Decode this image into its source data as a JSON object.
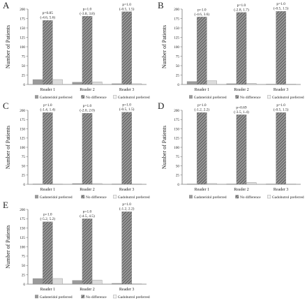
{
  "figure": {
    "colors": {
      "axis": "#777777",
      "gadoteridol_bar": "#9a9a9a",
      "no_difference_bar": "#6f6f6f",
      "gadobutrol_bar": "#dcdcdc",
      "text": "#222222"
    }
  },
  "chart_data": [
    {
      "panel": "A",
      "type": "bar",
      "ylabel": "Number of Patients",
      "ylim": [
        0,
        200
      ],
      "yticks": [
        "0",
        "25",
        "50",
        "75",
        "100",
        "125",
        "150",
        "175",
        "200"
      ],
      "categories": [
        "Reader 1",
        "Reader 2",
        "Reader 3"
      ],
      "series": [
        {
          "name": "Gadoteridol preferred",
          "values": [
            13,
            6,
            2
          ]
        },
        {
          "name": "No difference",
          "values": [
            170,
            181,
            193
          ]
        },
        {
          "name": "Gadobutrol preferred",
          "values": [
            13,
            7,
            2
          ]
        }
      ],
      "annotations": [
        [
          "p=0.85",
          "(-4.6, 5.6)"
        ],
        [
          "p=1.0",
          "(-3.8, 3.8)"
        ],
        [
          "p=1.0",
          "(-0.5, 1.5)"
        ]
      ],
      "legend": "bottom"
    },
    {
      "panel": "B",
      "type": "bar",
      "ylabel": "Number of Patients",
      "ylim": [
        0,
        200
      ],
      "yticks": [
        "0",
        "25",
        "50",
        "75",
        "100",
        "125",
        "150",
        "175",
        "200"
      ],
      "categories": [
        "Reader 1",
        "Reader 2",
        "Reader 3"
      ],
      "series": [
        {
          "name": "Gadoteridol preferred",
          "values": [
            8,
            2,
            1
          ]
        },
        {
          "name": "No difference",
          "values": [
            179,
            191,
            194
          ]
        },
        {
          "name": "Gadobutrol preferred",
          "values": [
            10,
            3,
            1
          ]
        }
      ],
      "annotations": [
        [
          "p=1.0",
          "(-4.6, 3.6)"
        ],
        [
          "p=1.0",
          "(-2.8, 1.7)"
        ],
        [
          "p=1.0",
          "(-0.5, 1.5)"
        ]
      ],
      "legend": "bottom"
    },
    {
      "panel": "C",
      "type": "bar",
      "ylabel": "Number of Patients",
      "ylim": [
        0,
        200
      ],
      "yticks": [
        "0",
        "25",
        "50",
        "75",
        "100",
        "125",
        "150",
        "175",
        "200"
      ],
      "categories": [
        "Reader 1",
        "Reader 2",
        "Reader 3"
      ],
      "series": [
        {
          "name": "Gadoteridol preferred",
          "values": [
            1,
            2,
            1
          ]
        },
        {
          "name": "No difference",
          "values": [
            194,
            192,
            195
          ]
        },
        {
          "name": "Gadobutrol preferred",
          "values": [
            1,
            2,
            1
          ]
        }
      ],
      "annotations": [
        [
          "p=1.0",
          "(-1.4, 1.4)"
        ],
        [
          "p=1.0",
          "(-2.0, 2.0)"
        ],
        [
          "p=1.0",
          "(-0.5, 1.5)"
        ]
      ],
      "legend": "bottom"
    },
    {
      "panel": "D",
      "type": "bar",
      "ylabel": "Number of Patients",
      "ylim": [
        0,
        200
      ],
      "yticks": [
        "0",
        "25",
        "50",
        "75",
        "100",
        "125",
        "150",
        "175",
        "200"
      ],
      "categories": [
        "Reader 1",
        "Reader 2",
        "Reader 3"
      ],
      "series": [
        {
          "name": "Gadoteridol preferred",
          "values": [
            1,
            1,
            1
          ]
        },
        {
          "name": "No difference",
          "values": [
            194,
            188,
            194
          ]
        },
        {
          "name": "Gadobutrol preferred",
          "values": [
            2,
            5,
            1
          ]
        }
      ],
      "annotations": [
        [
          "p=1.0",
          "(-1.2, 2.2)"
        ],
        [
          "p=0.69",
          "(-3.5, 1.4)"
        ],
        [
          "p=1.0",
          "(-0.5, 1.5)"
        ]
      ],
      "legend": "bottom"
    },
    {
      "panel": "E",
      "type": "bar",
      "ylabel": "Number of Patients",
      "ylim": [
        0,
        200
      ],
      "yticks": [
        "0",
        "25",
        "50",
        "75",
        "100",
        "125",
        "150",
        "175",
        "200"
      ],
      "categories": [
        "Reader 1",
        "Reader 2",
        "Reader 3"
      ],
      "series": [
        {
          "name": "Gadoteridol preferred",
          "values": [
            15,
            10,
            2
          ]
        },
        {
          "name": "No difference",
          "values": [
            167,
            175,
            194
          ]
        },
        {
          "name": "Gadobutrol preferred",
          "values": [
            15,
            11,
            1
          ]
        }
      ],
      "annotations": [
        [
          "p=1.0",
          "(-5.2, 5.2)"
        ],
        [
          "p=1.0",
          "(-4.5, 4.5)"
        ],
        [
          "p=1.0",
          "(-1.2, 2.2)"
        ]
      ],
      "legend": "bottom"
    }
  ]
}
